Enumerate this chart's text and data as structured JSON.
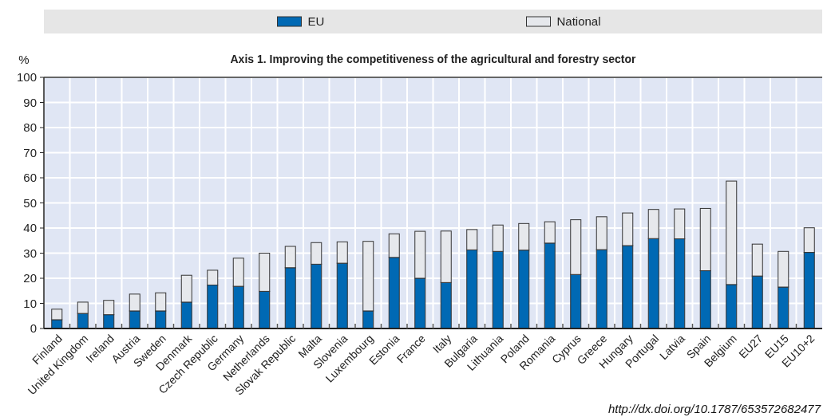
{
  "chart_data": {
    "type": "bar",
    "stacked": true,
    "title": "Axis 1. Improving the competitiveness of the agricultural and forestry sector",
    "ylabel": "%",
    "categories": [
      "Finland",
      "United Kingdom",
      "Ireland",
      "Austria",
      "Sweden",
      "Denmark",
      "Czech Republic",
      "Germany",
      "Netherlands",
      "Slovak Republic",
      "Malta",
      "Slovenia",
      "Luxembourg",
      "Estonia",
      "France",
      "Italy",
      "Bulgaria",
      "Lithuania",
      "Poland",
      "Romania",
      "Cyprus",
      "Greece",
      "Hungary",
      "Portugal",
      "Latvia",
      "Spain",
      "Belgium",
      "EU27",
      "EU15",
      "EU10+2"
    ],
    "series": [
      {
        "name": "EU",
        "color": "#0069b4",
        "values": [
          3.5,
          6,
          5.5,
          7,
          7,
          10.5,
          17.3,
          16.8,
          14.8,
          24.2,
          25.6,
          26,
          7,
          28.3,
          20,
          18.3,
          31.3,
          30.7,
          31.2,
          34,
          21.5,
          31.4,
          33,
          35.8,
          35.7,
          23,
          17.5,
          20.9,
          16.5,
          30.3
        ]
      },
      {
        "name": "National",
        "color": "#e6e8ec",
        "values": [
          4.2,
          4.5,
          5.7,
          6.7,
          7.2,
          10.7,
          5.9,
          11.2,
          15.2,
          8.5,
          8.6,
          8.5,
          27.7,
          9.4,
          18.7,
          20.5,
          8.1,
          10.5,
          10.6,
          8.5,
          21.8,
          13.1,
          13,
          11.6,
          11.9,
          24.8,
          41.2,
          12.7,
          14.2,
          9.8
        ]
      }
    ],
    "ylim": [
      0,
      100
    ],
    "yticks": [
      0,
      10,
      20,
      30,
      40,
      50,
      60,
      70,
      80,
      90,
      100
    ],
    "grid": true,
    "legend": "top",
    "annotations": [
      "http://dx.doi.org/10.1787/653572682477"
    ]
  }
}
